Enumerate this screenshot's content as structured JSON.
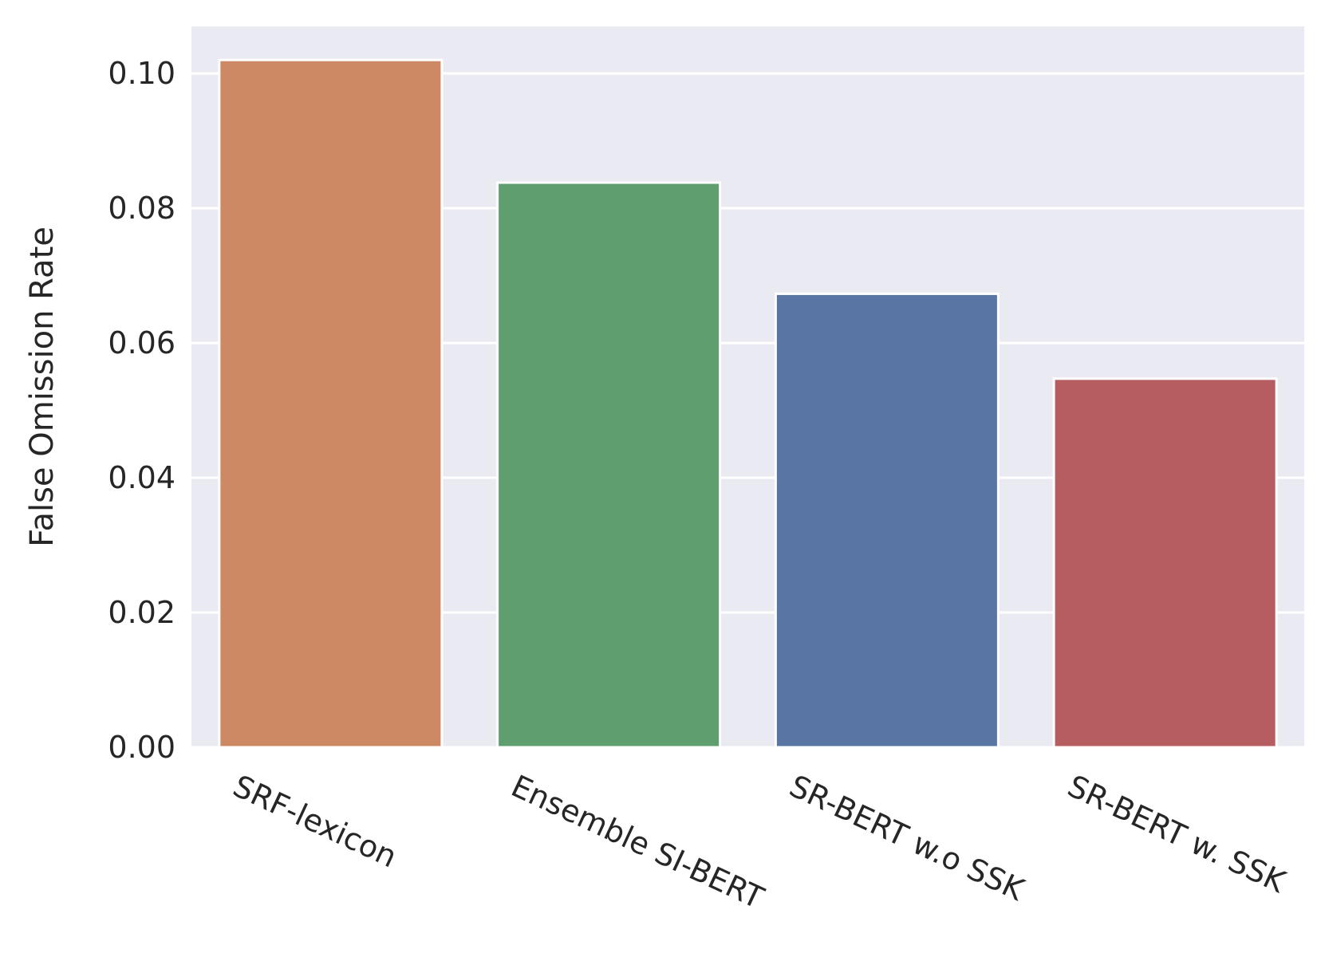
{
  "chart_data": {
    "type": "bar",
    "title": "",
    "xlabel": "",
    "ylabel": "False Omission Rate",
    "categories": [
      "SRF-lexicon",
      "Ensemble SI-BERT",
      "SR-BERT w.o SSK",
      "SR-BERT w. SSK"
    ],
    "values": [
      0.102,
      0.0838,
      0.0673,
      0.0547
    ],
    "colors": [
      "#cc8963",
      "#5f9e6e",
      "#5975a4",
      "#b55d60"
    ],
    "ylim": [
      0,
      0.107
    ],
    "yticks": [
      0.0,
      0.02,
      0.04,
      0.06,
      0.08,
      0.1
    ],
    "ytick_labels": [
      "0.00",
      "0.02",
      "0.04",
      "0.06",
      "0.08",
      "0.10"
    ],
    "grid": true,
    "background": "#eaeaf2",
    "legend": "none"
  }
}
